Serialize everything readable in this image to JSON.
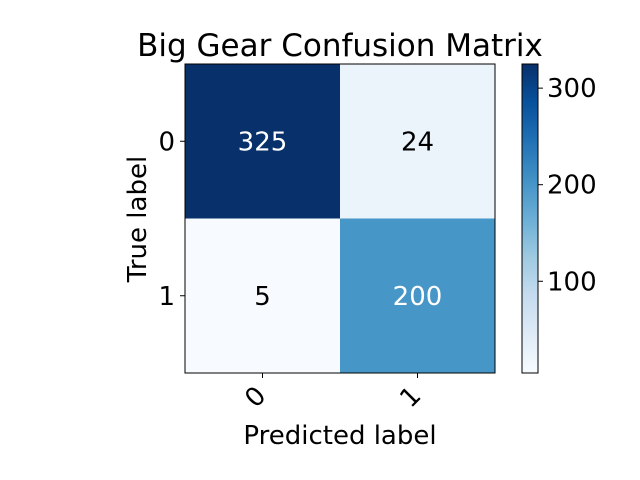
{
  "chart_data": {
    "type": "heatmap",
    "title": "Big Gear Confusion Matrix",
    "xlabel": "Predicted label",
    "ylabel": "True label",
    "x_categories": [
      "0",
      "1"
    ],
    "y_categories": [
      "0",
      "1"
    ],
    "values": [
      [
        325,
        24
      ],
      [
        5,
        200
      ]
    ],
    "colormap": "Blues",
    "color_low": "#f7fbff",
    "color_high": "#08306b",
    "colorbar": {
      "ticks": [
        "100",
        "200",
        "300"
      ],
      "min": 5,
      "max": 325
    }
  }
}
